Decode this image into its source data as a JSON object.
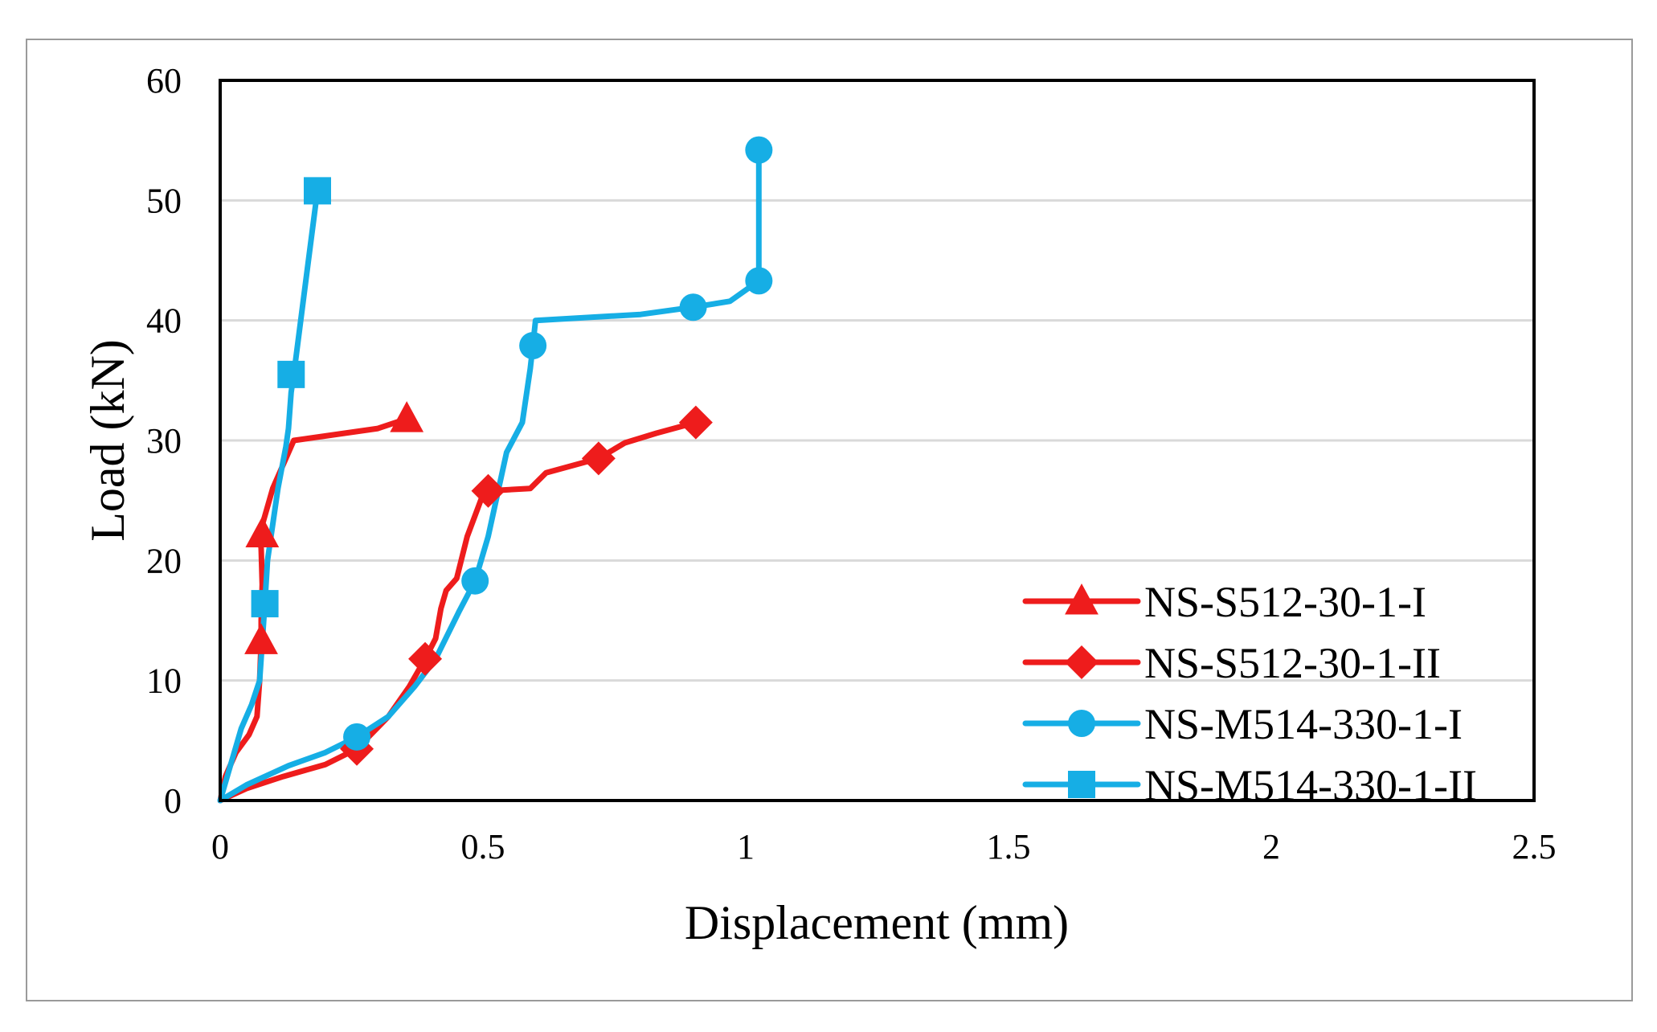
{
  "chart_data": {
    "type": "line",
    "title": "",
    "xlabel": "Displacement (mm)",
    "ylabel": "Load (kN)",
    "xlim": [
      0,
      2.5
    ],
    "ylim": [
      0,
      60
    ],
    "xticks": [
      0,
      0.5,
      1,
      1.5,
      2,
      2.5
    ],
    "yticks": [
      0,
      10,
      20,
      30,
      40,
      50,
      60
    ],
    "xtick_labels": [
      "0",
      "0.5",
      "1",
      "1.5",
      "2",
      "2.5"
    ],
    "ytick_labels": [
      "0",
      "10",
      "20",
      "30",
      "40",
      "50",
      "60"
    ],
    "grid": "horizontal",
    "legend_position": "bottom-right",
    "series": [
      {
        "name": "NS-S512-30-1-I",
        "color": "#ee1c1c",
        "marker": "triangle",
        "x": [
          0,
          0.01,
          0.03,
          0.055,
          0.07,
          0.075,
          0.078,
          0.078,
          0.08,
          0.078,
          0.075,
          0.1,
          0.14,
          0.3,
          0.355
        ],
        "y": [
          0,
          2,
          4,
          5.5,
          7,
          10,
          13.3,
          15,
          18,
          21,
          22.2,
          26,
          30,
          31,
          31.8
        ],
        "markers": [
          [
            0.078,
            13.3
          ],
          [
            0.08,
            22.2
          ],
          [
            0.355,
            31.8
          ]
        ]
      },
      {
        "name": "NS-S512-30-1-II",
        "color": "#ee1c1c",
        "marker": "diamond",
        "x": [
          0,
          0.05,
          0.12,
          0.2,
          0.26,
          0.32,
          0.36,
          0.39,
          0.41,
          0.42,
          0.43,
          0.45,
          0.47,
          0.5,
          0.51,
          0.59,
          0.62,
          0.72,
          0.77,
          0.83,
          0.905
        ],
        "y": [
          0,
          1,
          2,
          3,
          4.3,
          7,
          9.5,
          11.8,
          13.5,
          16,
          17.5,
          18.5,
          22,
          25.5,
          25.8,
          26,
          27.3,
          28.5,
          29.8,
          30.6,
          31.5
        ],
        "markers": [
          [
            0.26,
            4.3
          ],
          [
            0.39,
            11.8
          ],
          [
            0.51,
            25.8
          ],
          [
            0.72,
            28.5
          ],
          [
            0.905,
            31.5
          ]
        ]
      },
      {
        "name": "NS-M514-330-1-I",
        "color": "#16aee5",
        "marker": "circle",
        "x": [
          0,
          0.05,
          0.13,
          0.2,
          0.26,
          0.32,
          0.37,
          0.41,
          0.455,
          0.485,
          0.51,
          0.545,
          0.575,
          0.59,
          0.595,
          0.6,
          0.8,
          0.9,
          0.97,
          1.025,
          1.025
        ],
        "y": [
          0,
          1.3,
          2.9,
          4,
          5.3,
          7,
          9.5,
          11.8,
          15.8,
          18.3,
          22,
          29,
          31.5,
          36,
          37.9,
          40,
          40.5,
          41.1,
          41.6,
          43.3,
          54.2
        ],
        "markers": [
          [
            0.26,
            5.3
          ],
          [
            0.485,
            18.3
          ],
          [
            0.595,
            37.9
          ],
          [
            0.9,
            41.1
          ],
          [
            1.025,
            43.3
          ],
          [
            1.025,
            54.2
          ]
        ]
      },
      {
        "name": "NS-M514-330-1-II",
        "color": "#16aee5",
        "marker": "square",
        "x": [
          0,
          0.02,
          0.04,
          0.06,
          0.075,
          0.085,
          0.09,
          0.11,
          0.125,
          0.13,
          0.135,
          0.14,
          0.165,
          0.185
        ],
        "y": [
          0,
          3,
          6,
          8,
          10,
          16.4,
          20,
          26,
          29.5,
          31,
          34,
          35.5,
          44,
          50.8
        ],
        "markers": [
          [
            0.085,
            16.4
          ],
          [
            0.135,
            35.5
          ],
          [
            0.185,
            50.8
          ]
        ]
      }
    ]
  }
}
